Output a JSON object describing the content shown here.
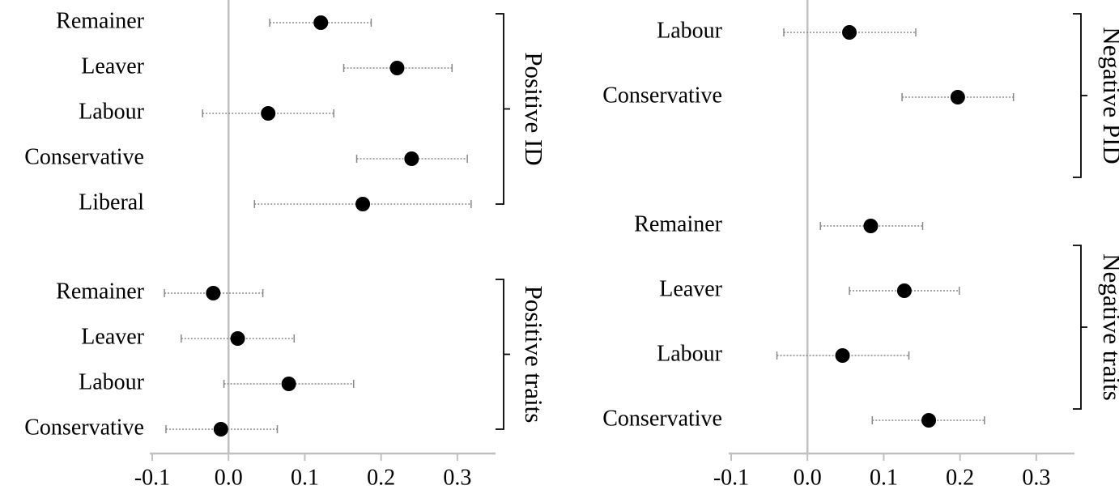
{
  "chart_data": [
    {
      "type": "dot",
      "xlim": [
        -0.1,
        0.35
      ],
      "xticks": [
        -0.1,
        {
          "value": 0,
          "label": "0.0"
        },
        0.1,
        0.2,
        0.3
      ],
      "series": [
        {
          "name": "Positive ID",
          "color": "#000000",
          "categories": [
            "Remainer",
            "Leaver",
            "Labour",
            "Conservative",
            "Liberal"
          ],
          "values": [
            0.121,
            0.221,
            0.052,
            0.24,
            0.176
          ],
          "ci_low": [
            0.054,
            0.151,
            -0.034,
            0.168,
            0.034
          ],
          "ci_high": [
            0.187,
            0.293,
            0.138,
            0.313,
            0.318
          ]
        },
        {
          "name": "Positive traits",
          "color": "#000000",
          "categories": [
            "Remainer",
            "Leaver",
            "Labour",
            "Conservative"
          ],
          "values": [
            -0.02,
            0.012,
            0.079,
            -0.01
          ],
          "ci_low": [
            -0.084,
            -0.062,
            -0.006,
            -0.082
          ],
          "ci_high": [
            0.045,
            0.086,
            0.164,
            0.064
          ]
        }
      ]
    },
    {
      "type": "dot",
      "xlim": [
        -0.1,
        0.35
      ],
      "xticks": [
        -0.1,
        {
          "value": 0,
          "label": "0.0"
        },
        0.1,
        0.2,
        0.3
      ],
      "series": [
        {
          "name": "Negative PID",
          "color": "#000000",
          "categories": [
            "Labour",
            "Conservative"
          ],
          "values": [
            0.055,
            0.197
          ],
          "ci_low": [
            -0.031,
            0.124
          ],
          "ci_high": [
            0.142,
            0.27
          ]
        },
        {
          "name": "Negative traits",
          "color": "#000000",
          "categories": [
            "Remainer",
            "Leaver",
            "Labour",
            "Conservative"
          ],
          "values": [
            0.083,
            0.127,
            0.046,
            0.159
          ],
          "ci_low": [
            0.017,
            0.055,
            -0.04,
            0.085
          ],
          "ci_high": [
            0.151,
            0.199,
            0.133,
            0.232
          ]
        }
      ]
    }
  ]
}
